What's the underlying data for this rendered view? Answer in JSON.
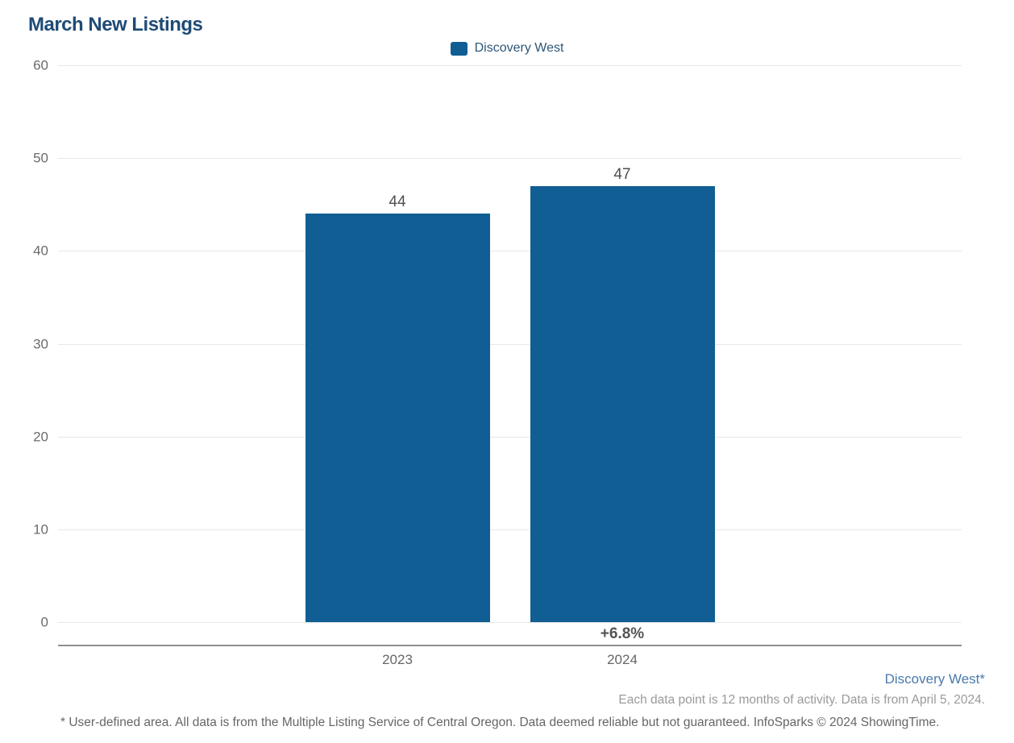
{
  "header": {
    "title": "March New Listings"
  },
  "legend": {
    "items": [
      {
        "label": "Discovery West",
        "color": "#105e93"
      }
    ]
  },
  "chart_data": {
    "type": "bar",
    "title": "March New Listings",
    "categories": [
      "2023",
      "2024"
    ],
    "series": [
      {
        "name": "Discovery West",
        "color": "#105e93",
        "values": [
          44,
          47
        ]
      }
    ],
    "data_labels": [
      "44",
      "47"
    ],
    "change_label": "+6.8%",
    "change_label_category": "2024",
    "xlabel": "",
    "ylabel": "",
    "ylim": [
      0,
      60
    ],
    "yticks": [
      0,
      10,
      20,
      30,
      40,
      50,
      60
    ],
    "grid": "horizontal",
    "legend_position": "top-center"
  },
  "footer": {
    "area_label": "Discovery West*",
    "data_note": "Each data point is 12 months of activity. Data is from April 5, 2024.",
    "disclaimer": "* User-defined area. All data is from the Multiple Listing Service of Central Oregon. Data deemed reliable but not guaranteed. InfoSparks © 2024 ShowingTime."
  },
  "colors": {
    "bar": "#105e93",
    "title": "#1e4b76",
    "gridline": "#e7e7e7",
    "axis_line": "#8f8f8f",
    "tick_text": "#6b6b6b",
    "value_text": "#4f4f4f",
    "footer_link": "#4a7aac",
    "footer_note": "#9a9a9a",
    "background": "#ffffff"
  }
}
